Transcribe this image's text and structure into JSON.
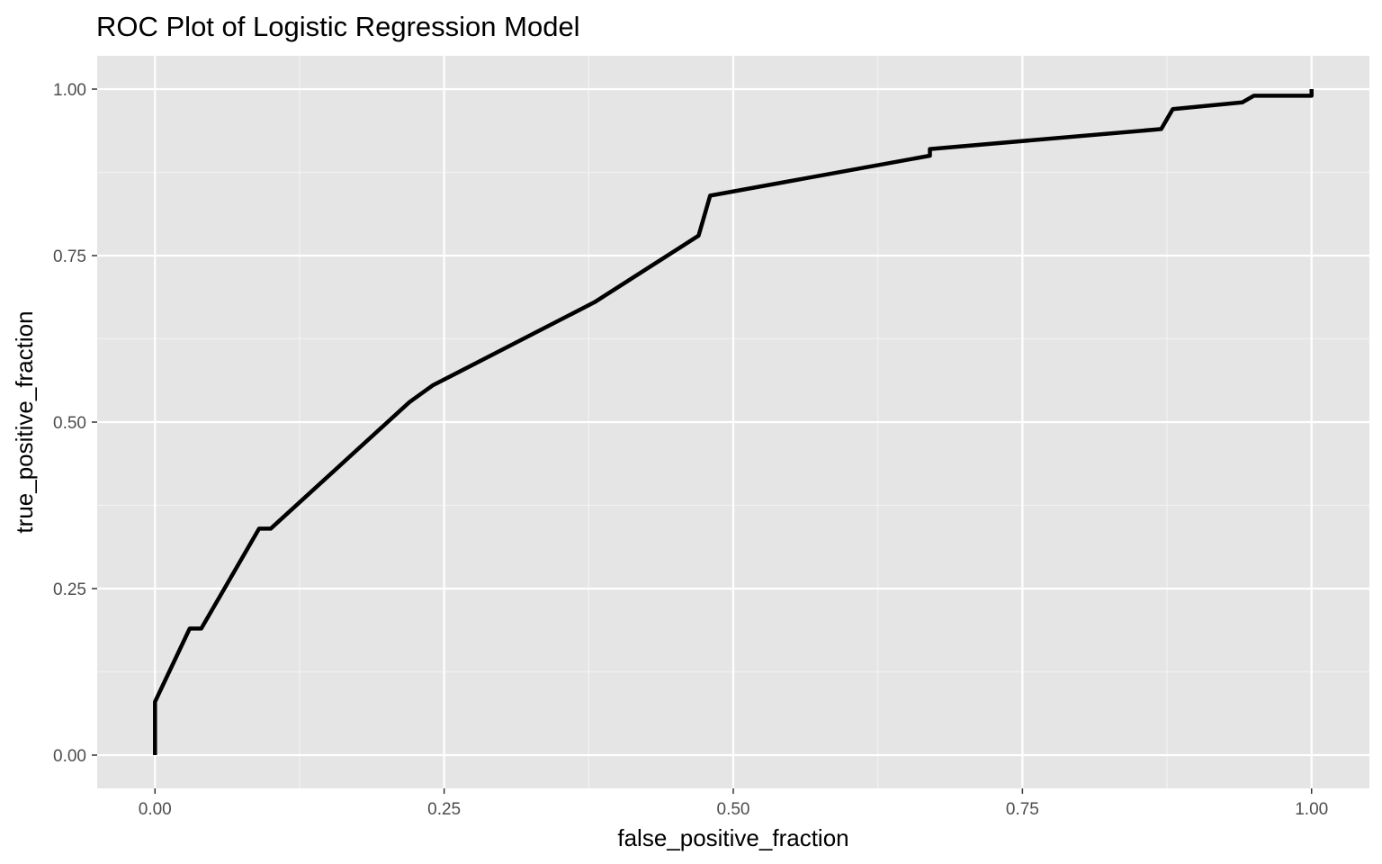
{
  "chart_data": {
    "type": "line",
    "title": "ROC Plot of Logistic Regression Model",
    "xlabel": "false_positive_fraction",
    "ylabel": "true_positive_fraction",
    "xlim": [
      -0.05,
      1.05
    ],
    "ylim": [
      -0.05,
      1.05
    ],
    "x_ticks": [
      0.0,
      0.25,
      0.5,
      0.75,
      1.0
    ],
    "x_tick_labels": [
      "0.00",
      "0.25",
      "0.50",
      "0.75",
      "1.00"
    ],
    "y_ticks": [
      0.0,
      0.25,
      0.5,
      0.75,
      1.0
    ],
    "y_tick_labels": [
      "0.00",
      "0.25",
      "0.50",
      "0.75",
      "1.00"
    ],
    "grid": true,
    "legend": "none",
    "series": [
      {
        "x": [
          0.0,
          0.0,
          0.0,
          0.03,
          0.04,
          0.09,
          0.1,
          0.22,
          0.24,
          0.38,
          0.47,
          0.48,
          0.67,
          0.67,
          0.87,
          0.88,
          0.94,
          0.95,
          1.0,
          1.0
        ],
        "y": [
          0.0,
          0.04,
          0.08,
          0.19,
          0.19,
          0.34,
          0.34,
          0.53,
          0.555,
          0.68,
          0.78,
          0.84,
          0.9,
          0.91,
          0.94,
          0.97,
          0.98,
          0.99,
          0.99,
          1.0
        ]
      }
    ]
  },
  "colors": {
    "panel_background": "#e5e5e5",
    "grid_major": "#ffffff",
    "grid_minor": "#f2f2f2",
    "line": "#000000",
    "tick_text": "#4d4d4d",
    "tick_mark": "#333333"
  }
}
